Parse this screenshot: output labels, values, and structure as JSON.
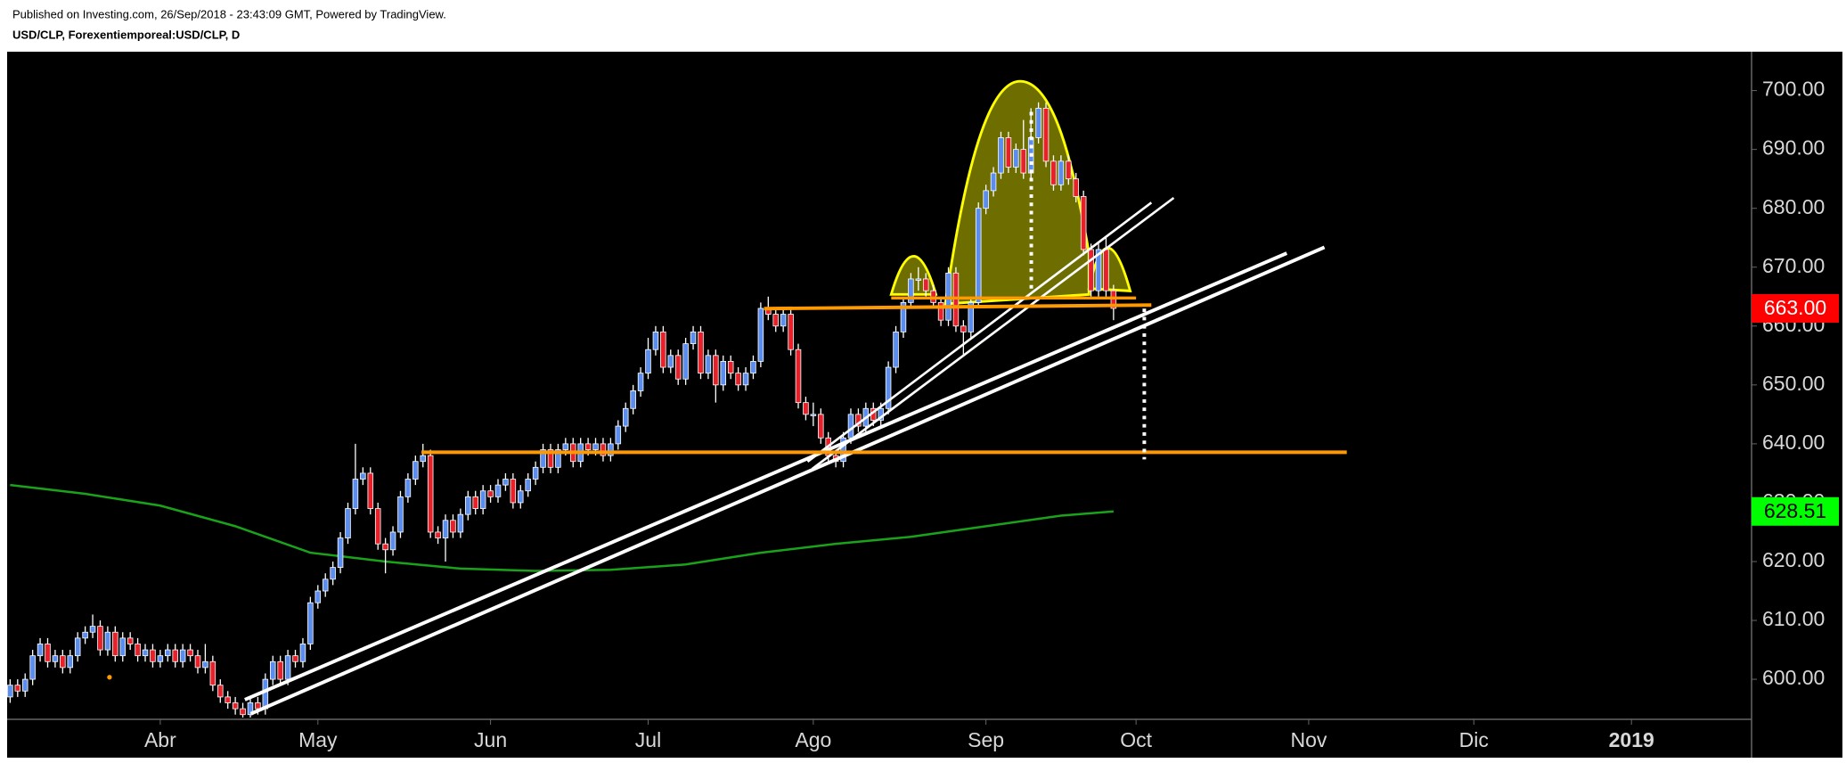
{
  "header": {
    "published": "Published on Investing.com, 26/Sep/2018 - 23:43:09 GMT, Powered by TradingView.",
    "symbol": "USD/CLP, Forexentiemporeal:USD/CLP, D"
  },
  "chart_data": {
    "type": "candlestick",
    "up_color": "#5b8def",
    "down_color": "#e8202a",
    "wick_color": "#ffffff",
    "open": [
      597,
      599,
      598,
      600,
      604,
      606,
      603,
      604,
      602,
      604,
      607,
      608,
      609,
      605,
      608,
      604,
      607,
      606,
      604,
      605,
      603,
      604,
      605,
      603,
      605,
      604,
      602,
      603,
      599,
      597,
      596,
      595,
      594,
      596,
      595,
      600,
      603,
      600,
      604,
      603,
      606,
      613,
      615,
      617,
      619,
      624,
      629,
      634,
      635,
      629,
      623,
      622,
      625,
      631,
      634,
      637,
      638,
      625,
      624,
      627,
      625,
      628,
      631,
      629,
      632,
      631,
      633,
      634,
      630,
      632,
      634,
      636,
      639,
      636,
      639,
      640,
      637,
      640,
      639,
      640,
      638,
      640,
      643,
      646,
      649,
      652,
      656,
      659,
      653,
      655,
      651,
      657,
      659,
      652,
      655,
      650,
      654,
      652,
      650,
      652,
      654,
      663,
      662,
      660,
      662,
      656,
      647,
      645,
      645,
      641,
      638,
      637,
      641,
      645,
      643,
      646,
      644,
      646,
      653,
      659,
      664,
      668,
      668,
      666,
      664,
      661,
      669,
      660,
      659,
      664,
      680,
      683,
      686,
      692,
      687,
      690,
      686,
      692,
      697,
      688,
      684,
      688,
      685,
      682,
      673,
      666,
      673,
      666
    ],
    "high": [
      600,
      600,
      601,
      605,
      607,
      607,
      605,
      605,
      605,
      608,
      609,
      611,
      610,
      609,
      609,
      608,
      608,
      607,
      606,
      606,
      605,
      606,
      606,
      606,
      606,
      605,
      606,
      604,
      600,
      598,
      597,
      596,
      597,
      597,
      601,
      604,
      604,
      605,
      605,
      607,
      614,
      616,
      618,
      620,
      625,
      630,
      640,
      636,
      636,
      630,
      624,
      626,
      632,
      635,
      638,
      640,
      639,
      626,
      628,
      628,
      629,
      632,
      632,
      633,
      633,
      634,
      635,
      635,
      633,
      635,
      637,
      640,
      640,
      640,
      641,
      641,
      641,
      641,
      641,
      641,
      641,
      644,
      647,
      650,
      653,
      658,
      660,
      660,
      656,
      656,
      658,
      660,
      660,
      656,
      656,
      655,
      655,
      653,
      653,
      655,
      664,
      665,
      663,
      663,
      663,
      657,
      648,
      647,
      646,
      642,
      639,
      642,
      646,
      646,
      647,
      647,
      647,
      654,
      660,
      665,
      669,
      670,
      669,
      667,
      665,
      670,
      670,
      661,
      665,
      681,
      684,
      687,
      693,
      693,
      691,
      695,
      697,
      698,
      698,
      689,
      689,
      689,
      686,
      683,
      674,
      674,
      675,
      667
    ],
    "low": [
      596,
      597,
      597,
      599,
      603,
      602,
      602,
      601,
      601,
      603,
      606,
      607,
      604,
      604,
      603,
      603,
      605,
      603,
      603,
      602,
      602,
      603,
      602,
      602,
      603,
      601,
      601,
      598,
      596,
      595,
      594,
      593.5,
      593.5,
      594,
      594,
      599,
      599,
      599,
      602,
      602,
      605,
      612,
      614,
      616,
      618,
      623,
      628,
      633,
      628,
      622,
      618,
      621,
      624,
      630,
      633,
      636,
      624,
      623,
      620,
      624,
      624,
      627,
      628,
      628,
      630,
      630,
      632,
      629,
      629,
      631,
      633,
      635,
      635,
      635,
      638,
      636,
      636,
      638,
      638,
      637,
      637,
      639,
      642,
      645,
      648,
      651,
      655,
      652,
      652,
      650,
      650,
      656,
      651,
      651,
      647,
      649,
      651,
      649,
      649,
      651,
      653,
      661,
      659,
      659,
      655,
      646,
      644,
      643,
      640,
      637,
      636,
      636,
      640,
      642,
      642,
      643,
      643,
      645,
      652,
      658,
      663,
      666,
      665,
      663,
      660,
      660,
      659,
      655,
      658,
      663,
      679,
      682,
      685,
      686,
      686,
      685,
      685,
      691,
      687,
      683,
      683,
      684,
      681,
      672,
      665,
      665,
      665,
      661
    ],
    "close": [
      599,
      598,
      600,
      604,
      606,
      603,
      604,
      602,
      604,
      607,
      608,
      609,
      605,
      608,
      604,
      607,
      606,
      604,
      605,
      603,
      604,
      605,
      603,
      605,
      604,
      602,
      603,
      599,
      597,
      596,
      595,
      594,
      596,
      595,
      600,
      603,
      600,
      604,
      603,
      606,
      613,
      615,
      617,
      619,
      624,
      629,
      634,
      635,
      629,
      623,
      622,
      625,
      631,
      634,
      637,
      638,
      625,
      624,
      627,
      625,
      628,
      631,
      629,
      632,
      631,
      633,
      634,
      630,
      632,
      634,
      636,
      639,
      636,
      639,
      640,
      637,
      640,
      639,
      640,
      638,
      640,
      643,
      646,
      649,
      652,
      656,
      659,
      653,
      655,
      651,
      657,
      659,
      652,
      655,
      650,
      654,
      652,
      650,
      652,
      654,
      663,
      662,
      660,
      662,
      656,
      647,
      645,
      645,
      641,
      638,
      637,
      641,
      645,
      643,
      646,
      644,
      646,
      653,
      659,
      664,
      668,
      668,
      666,
      664,
      661,
      669,
      660,
      659,
      664,
      680,
      683,
      686,
      692,
      687,
      690,
      686,
      692,
      697,
      688,
      684,
      688,
      685,
      682,
      673,
      666,
      673,
      666,
      663
    ],
    "ma": {
      "color": "#1aa31a",
      "x": [
        0,
        10,
        20,
        30,
        40,
        50,
        60,
        70,
        80,
        90,
        100,
        110,
        120,
        130,
        140,
        147
      ],
      "values": [
        633,
        631.5,
        629.5,
        626,
        621.5,
        620,
        618.8,
        618.4,
        618.6,
        619.5,
        621.5,
        623,
        624.2,
        626,
        627.8,
        628.51
      ]
    },
    "last_price": {
      "value": 663,
      "label": "663.00"
    },
    "xlim": [
      -0.4,
      232
    ],
    "xticks": [
      {
        "value": 20,
        "label": "Abr"
      },
      {
        "value": 41,
        "label": "May"
      },
      {
        "value": 64,
        "label": "Jun"
      },
      {
        "value": 85,
        "label": "Jul"
      },
      {
        "value": 107,
        "label": "Ago"
      },
      {
        "value": 130,
        "label": "Sep"
      },
      {
        "value": 150,
        "label": "Oct"
      },
      {
        "value": 173,
        "label": "Nov"
      },
      {
        "value": 195,
        "label": "Dic"
      },
      {
        "value": 216,
        "label": "2019"
      }
    ],
    "ylim": [
      593.2,
      706.6
    ],
    "yticks": [
      {
        "value": 600,
        "label": "600.00"
      },
      {
        "value": 610,
        "label": "610.00"
      },
      {
        "value": 620,
        "label": "620.00"
      },
      {
        "value": 630,
        "label": "630.00"
      },
      {
        "value": 640,
        "label": "640.00"
      },
      {
        "value": 650,
        "label": "650.00"
      },
      {
        "value": 660,
        "label": "660.00"
      },
      {
        "value": 670,
        "label": "670.00"
      },
      {
        "value": 680,
        "label": "680.00"
      },
      {
        "value": 690,
        "label": "690.00"
      },
      {
        "value": 700,
        "label": "700.00"
      }
    ]
  }
}
